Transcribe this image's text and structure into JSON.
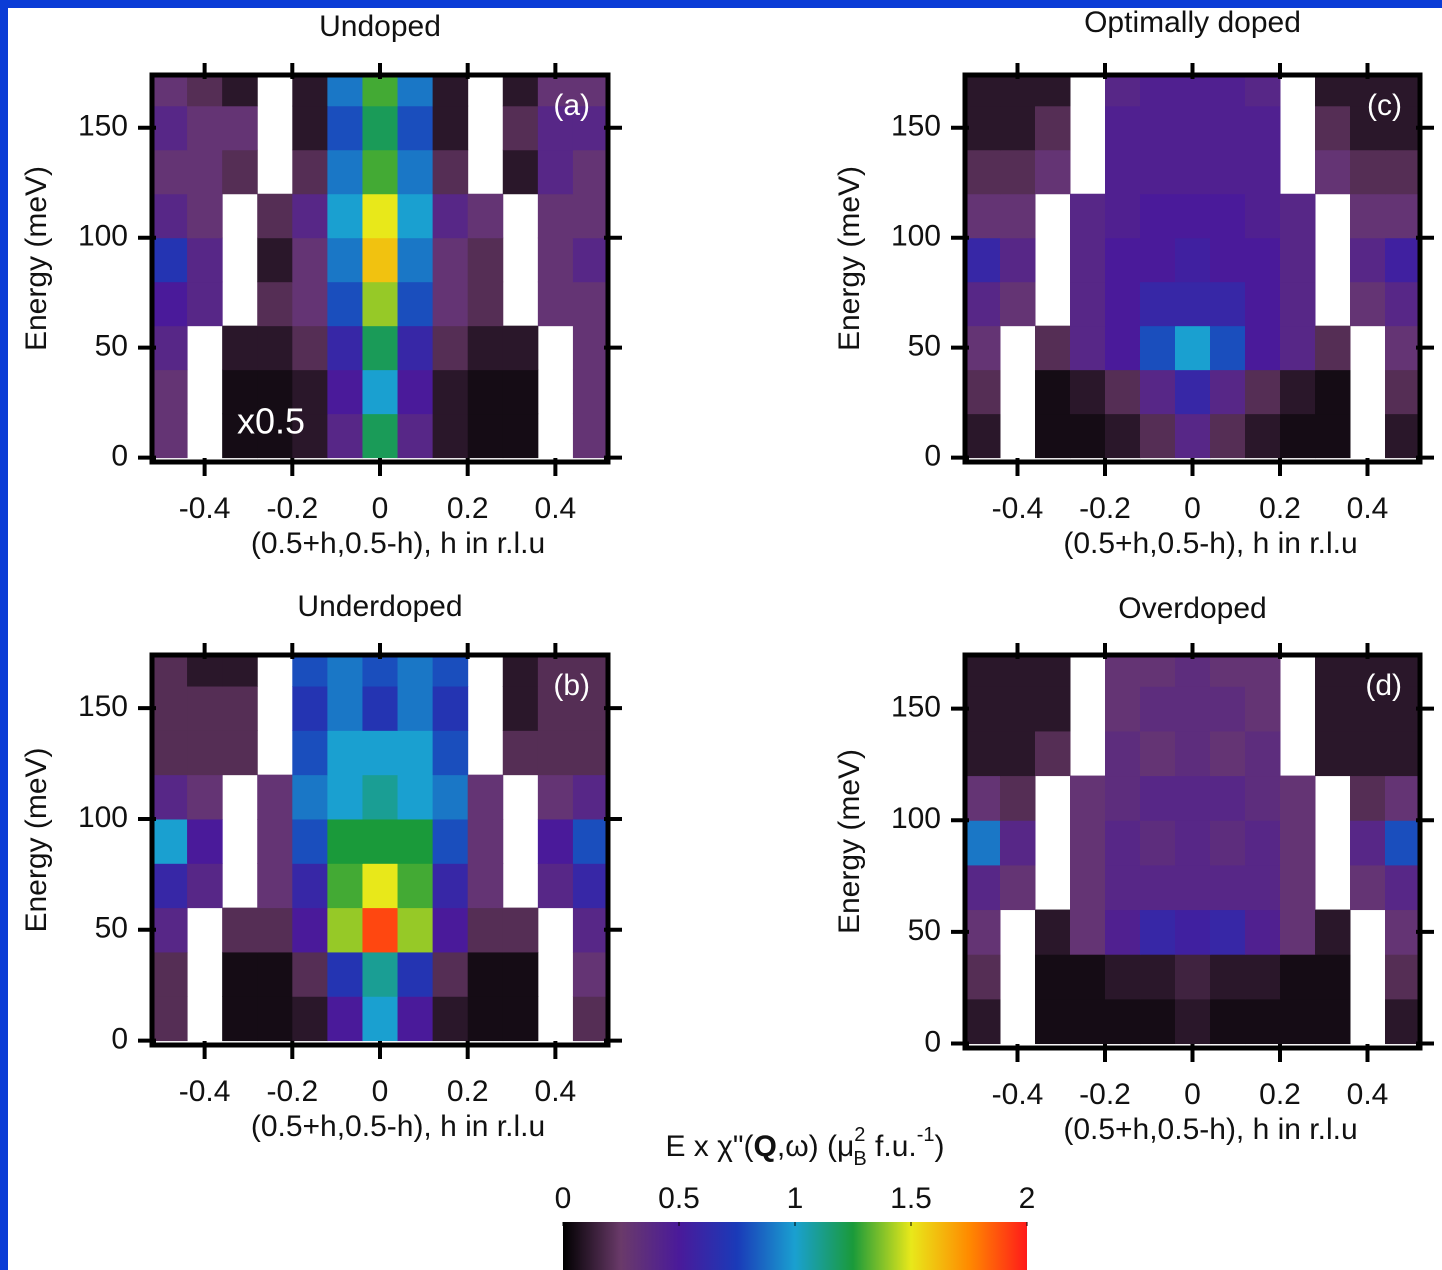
{
  "chart_data": [
    {
      "type": "heatmap",
      "title": "Undoped",
      "label": "(a)",
      "annotation": "x0.5",
      "xlabel": "(0.5+h,0.5-h), h in r.l.u",
      "ylabel": "Energy (meV)",
      "x": [
        -0.48,
        -0.4,
        -0.32,
        -0.24,
        -0.16,
        -0.08,
        0,
        0.08,
        0.16,
        0.24,
        0.32,
        0.4,
        0.48
      ],
      "y": [
        10,
        30,
        50,
        70,
        90,
        110,
        130,
        150,
        170
      ],
      "z": [
        [
          0.3,
          null,
          0.05,
          0.05,
          0.1,
          0.4,
          1.2,
          0.4,
          0.1,
          0.05,
          0.05,
          null,
          0.3
        ],
        [
          0.3,
          null,
          0.05,
          0.05,
          0.1,
          0.5,
          1.0,
          0.5,
          0.1,
          0.05,
          0.05,
          null,
          0.3
        ],
        [
          0.4,
          null,
          0.1,
          0.1,
          0.2,
          0.6,
          1.2,
          0.6,
          0.2,
          0.1,
          0.1,
          null,
          0.3
        ],
        [
          0.5,
          0.4,
          null,
          0.2,
          0.3,
          0.8,
          1.4,
          0.8,
          0.3,
          0.2,
          null,
          0.3,
          0.3
        ],
        [
          0.7,
          0.4,
          null,
          0.1,
          0.3,
          0.9,
          1.6,
          0.9,
          0.3,
          0.2,
          null,
          0.3,
          0.4
        ],
        [
          0.4,
          0.3,
          null,
          0.2,
          0.4,
          1.0,
          1.5,
          1.0,
          0.4,
          0.3,
          null,
          0.3,
          0.3
        ],
        [
          0.3,
          0.3,
          0.2,
          null,
          0.2,
          0.9,
          1.3,
          0.9,
          0.2,
          null,
          0.1,
          0.4,
          0.3
        ],
        [
          0.4,
          0.3,
          0.3,
          null,
          0.1,
          0.8,
          1.2,
          0.8,
          0.1,
          null,
          0.2,
          0.4,
          0.4
        ],
        [
          0.3,
          0.2,
          0.1,
          null,
          0.1,
          0.9,
          1.3,
          0.9,
          0.1,
          null,
          0.1,
          0.3,
          0.3
        ]
      ],
      "xlim": [
        -0.52,
        0.52
      ],
      "ylim": [
        -2,
        174
      ],
      "xticks": [
        -0.4,
        -0.2,
        0,
        0.2,
        0.4
      ],
      "yticks": [
        0,
        50,
        100,
        150
      ]
    },
    {
      "type": "heatmap",
      "title": "Underdoped",
      "label": "(b)",
      "xlabel": "(0.5+h,0.5-h), h in r.l.u",
      "ylabel": "Energy (meV)",
      "x": [
        -0.48,
        -0.4,
        -0.32,
        -0.24,
        -0.16,
        -0.08,
        0,
        0.08,
        0.16,
        0.24,
        0.32,
        0.4,
        0.48
      ],
      "y": [
        10,
        30,
        50,
        70,
        90,
        110,
        130,
        150,
        170
      ],
      "z": [
        [
          0.2,
          null,
          0.05,
          0.05,
          0.1,
          0.5,
          1.0,
          0.5,
          0.1,
          0.05,
          0.05,
          null,
          0.2
        ],
        [
          0.2,
          null,
          0.05,
          0.05,
          0.2,
          0.7,
          1.1,
          0.7,
          0.2,
          0.05,
          0.05,
          null,
          0.3
        ],
        [
          0.4,
          null,
          0.2,
          0.2,
          0.5,
          1.4,
          1.9,
          1.4,
          0.5,
          0.2,
          0.2,
          null,
          0.4
        ],
        [
          0.6,
          0.4,
          null,
          0.3,
          0.6,
          1.3,
          1.5,
          1.3,
          0.6,
          0.3,
          null,
          0.4,
          0.6
        ],
        [
          1.0,
          0.5,
          null,
          0.3,
          0.8,
          1.25,
          1.25,
          1.25,
          0.8,
          0.3,
          null,
          0.5,
          0.8
        ],
        [
          0.4,
          0.3,
          null,
          0.3,
          0.9,
          1.0,
          1.1,
          1.0,
          0.9,
          0.3,
          null,
          0.3,
          0.4
        ],
        [
          0.2,
          0.2,
          0.2,
          null,
          0.8,
          1.0,
          1.0,
          1.0,
          0.8,
          null,
          0.2,
          0.2,
          0.2
        ],
        [
          0.2,
          0.2,
          0.2,
          null,
          0.7,
          0.9,
          0.7,
          0.9,
          0.7,
          null,
          0.1,
          0.2,
          0.2
        ],
        [
          0.2,
          0.1,
          0.1,
          null,
          0.8,
          0.9,
          0.8,
          0.9,
          0.8,
          null,
          0.1,
          0.2,
          0.2
        ]
      ],
      "xlim": [
        -0.52,
        0.52
      ],
      "ylim": [
        -2,
        174
      ],
      "xticks": [
        -0.4,
        -0.2,
        0,
        0.2,
        0.4
      ],
      "yticks": [
        0,
        50,
        100,
        150
      ]
    },
    {
      "type": "heatmap",
      "title": "Optimally doped",
      "label": "(c)",
      "xlabel": "(0.5+h,0.5-h), h in r.l.u",
      "ylabel": "Energy (meV)",
      "x": [
        -0.48,
        -0.4,
        -0.32,
        -0.24,
        -0.16,
        -0.08,
        0,
        0.08,
        0.16,
        0.24,
        0.32,
        0.4,
        0.48
      ],
      "y": [
        10,
        30,
        50,
        70,
        90,
        110,
        130,
        150,
        170
      ],
      "z": [
        [
          0.1,
          null,
          0.05,
          0.05,
          0.1,
          0.2,
          0.4,
          0.2,
          0.1,
          0.05,
          0.05,
          null,
          0.1
        ],
        [
          0.2,
          null,
          0.05,
          0.1,
          0.2,
          0.4,
          0.6,
          0.4,
          0.2,
          0.1,
          0.05,
          null,
          0.2
        ],
        [
          0.3,
          null,
          0.2,
          0.4,
          0.5,
          0.8,
          1.0,
          0.8,
          0.5,
          0.4,
          0.2,
          null,
          0.3
        ],
        [
          0.4,
          0.3,
          null,
          0.4,
          0.5,
          0.6,
          0.6,
          0.6,
          0.5,
          0.4,
          null,
          0.3,
          0.4
        ],
        [
          0.6,
          0.4,
          null,
          0.4,
          0.5,
          0.5,
          0.55,
          0.5,
          0.5,
          0.4,
          null,
          0.4,
          0.55
        ],
        [
          0.3,
          0.3,
          null,
          0.4,
          0.45,
          0.5,
          0.5,
          0.5,
          0.45,
          0.4,
          null,
          0.3,
          0.3
        ],
        [
          0.2,
          0.2,
          0.3,
          null,
          0.45,
          0.45,
          0.45,
          0.45,
          0.45,
          null,
          0.3,
          0.2,
          0.2
        ],
        [
          0.1,
          0.1,
          0.2,
          null,
          0.45,
          0.45,
          0.45,
          0.45,
          0.45,
          null,
          0.2,
          0.1,
          0.1
        ],
        [
          0.1,
          0.1,
          0.1,
          null,
          0.4,
          0.45,
          0.45,
          0.45,
          0.4,
          null,
          0.1,
          0.1,
          0.1
        ]
      ],
      "xlim": [
        -0.52,
        0.52
      ],
      "ylim": [
        -2,
        174
      ],
      "xticks": [
        -0.4,
        -0.2,
        0,
        0.2,
        0.4
      ],
      "yticks": [
        0,
        50,
        100,
        150
      ]
    },
    {
      "type": "heatmap",
      "title": "Overdoped",
      "label": "(d)",
      "xlabel": "(0.5+h,0.5-h), h in r.l.u",
      "ylabel": "Energy (meV)",
      "x": [
        -0.48,
        -0.4,
        -0.32,
        -0.24,
        -0.16,
        -0.08,
        0,
        0.08,
        0.16,
        0.24,
        0.32,
        0.4,
        0.48
      ],
      "y": [
        10,
        30,
        50,
        70,
        90,
        110,
        130,
        150,
        170
      ],
      "z": [
        [
          0.1,
          null,
          0.05,
          0.05,
          0.05,
          0.05,
          0.1,
          0.05,
          0.05,
          0.05,
          0.05,
          null,
          0.1
        ],
        [
          0.2,
          null,
          0.05,
          0.05,
          0.1,
          0.1,
          0.15,
          0.1,
          0.1,
          0.05,
          0.05,
          null,
          0.2
        ],
        [
          0.3,
          null,
          0.1,
          0.3,
          0.45,
          0.6,
          0.55,
          0.6,
          0.45,
          0.3,
          0.1,
          null,
          0.3
        ],
        [
          0.4,
          0.3,
          null,
          0.3,
          0.4,
          0.4,
          0.4,
          0.4,
          0.4,
          0.3,
          null,
          0.3,
          0.4
        ],
        [
          0.9,
          0.4,
          null,
          0.3,
          0.4,
          0.35,
          0.4,
          0.35,
          0.4,
          0.3,
          null,
          0.4,
          0.8
        ],
        [
          0.3,
          0.2,
          null,
          0.3,
          0.35,
          0.4,
          0.4,
          0.4,
          0.35,
          0.3,
          null,
          0.2,
          0.3
        ],
        [
          0.1,
          0.1,
          0.2,
          null,
          0.35,
          0.3,
          0.35,
          0.3,
          0.35,
          null,
          0.1,
          0.1,
          0.1
        ],
        [
          0.1,
          0.1,
          0.1,
          null,
          0.3,
          0.35,
          0.35,
          0.35,
          0.3,
          null,
          0.1,
          0.1,
          0.1
        ],
        [
          0.1,
          0.1,
          0.1,
          null,
          0.3,
          0.3,
          0.35,
          0.3,
          0.3,
          null,
          0.1,
          0.1,
          0.1
        ]
      ],
      "xlim": [
        -0.52,
        0.52
      ],
      "ylim": [
        -2,
        174
      ],
      "xticks": [
        -0.4,
        -0.2,
        0,
        0.2,
        0.4
      ],
      "yticks": [
        0,
        50,
        100,
        150
      ]
    }
  ],
  "colorbar": {
    "label_parts": [
      "E x χ\"(",
      "Q",
      ",ω)  (μ",
      "2",
      "B",
      " f.u.",
      "-1",
      ")"
    ],
    "zlim": [
      0,
      2
    ],
    "ticks": [
      0,
      0.5,
      1,
      1.5,
      2
    ],
    "colorscale": [
      "#000000",
      "#6a3a6a",
      "#4a1a9a",
      "#1a3ab8",
      "#1aa0d0",
      "#1a9a3a",
      "#e8e81a",
      "#ff8a00",
      "#ff1a1a"
    ]
  }
}
